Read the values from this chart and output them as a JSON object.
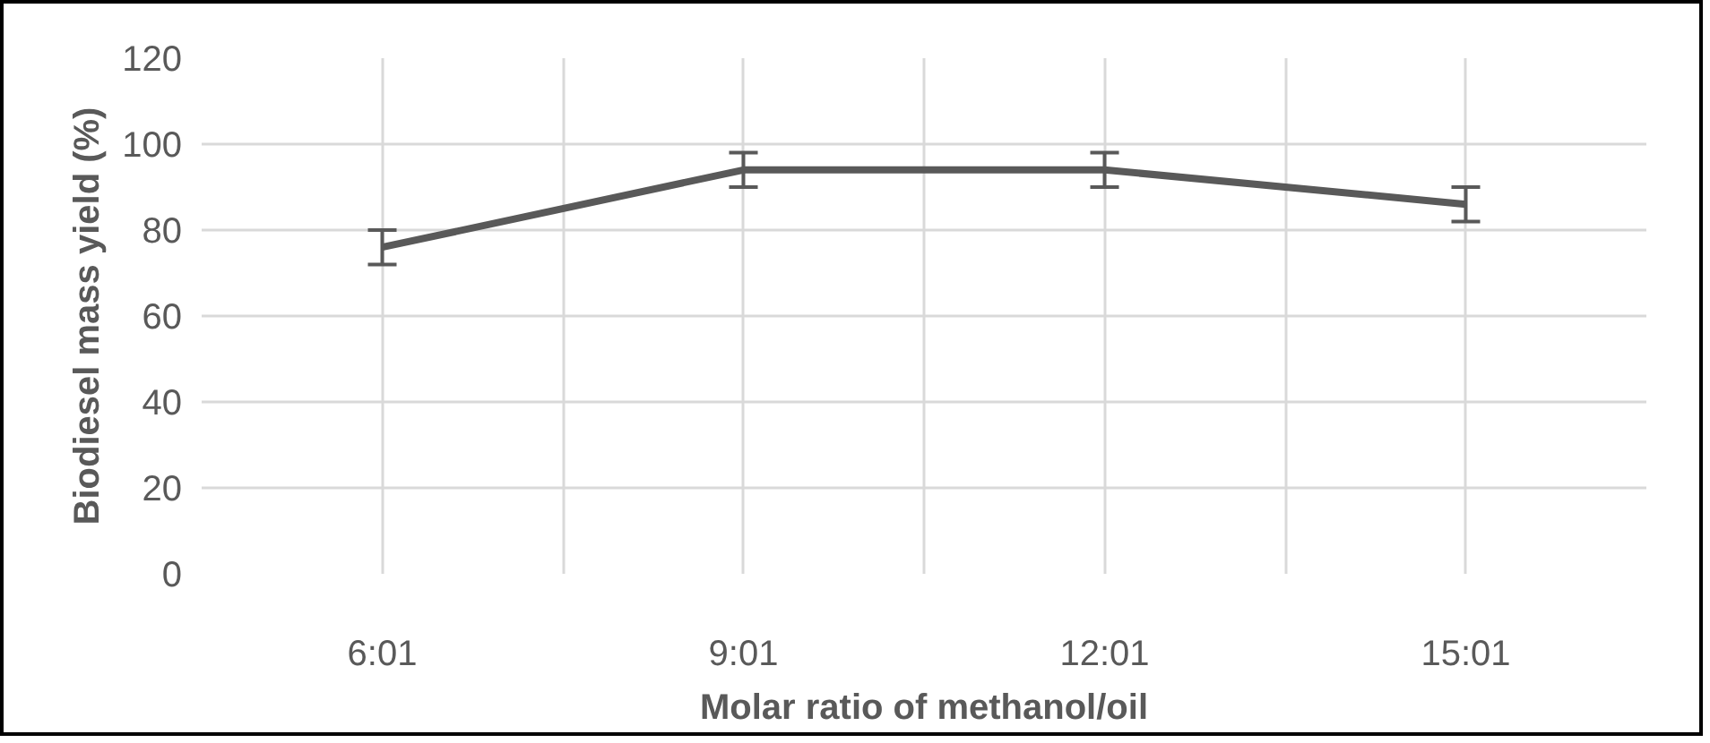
{
  "chart_data": {
    "type": "line",
    "xlabel": "Molar ratio of methanol/oil",
    "ylabel": "Biodiesel mass yield (%)",
    "categories": [
      "6:01",
      "9:01",
      "12:01",
      "15:01"
    ],
    "series": [
      {
        "color": "#595959",
        "values": [
          76,
          94,
          94,
          86
        ],
        "errors": [
          4,
          4,
          4,
          4
        ]
      }
    ],
    "ylim": [
      0,
      120
    ],
    "yticks": [
      0,
      20,
      40,
      60,
      80,
      100,
      120
    ],
    "grid": true,
    "marker": "none",
    "line_style": "solid"
  }
}
